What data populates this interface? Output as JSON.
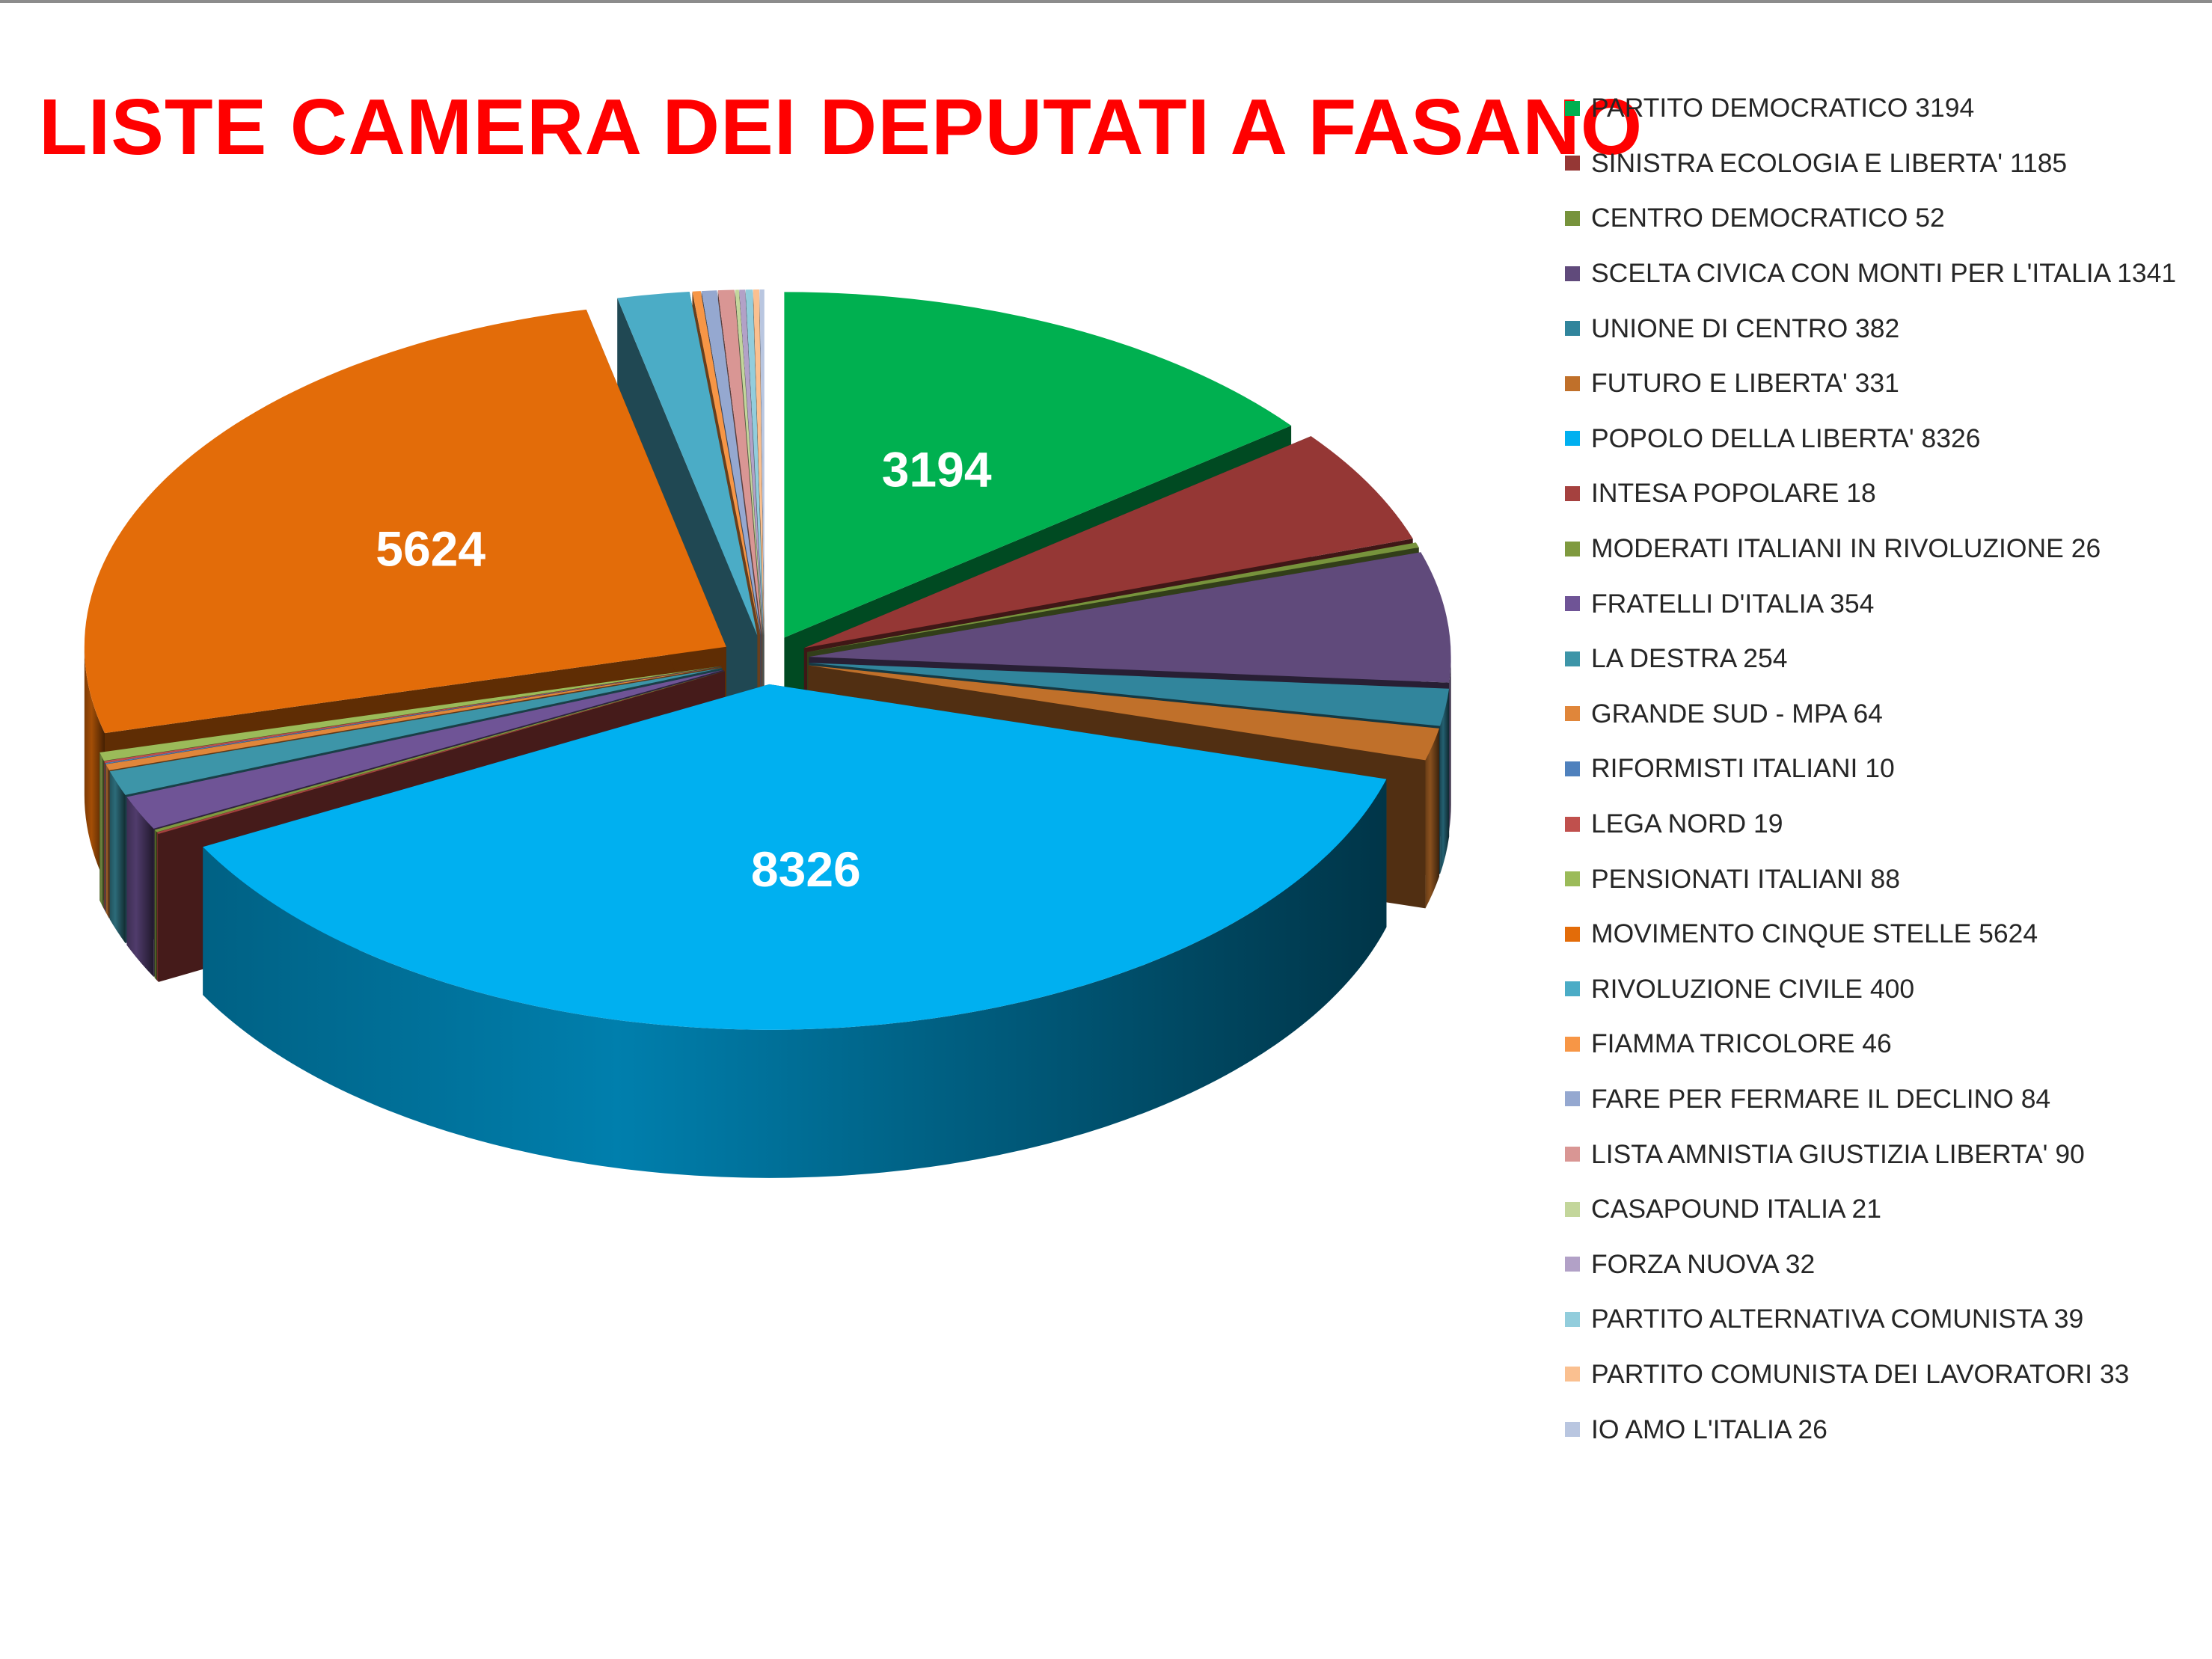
{
  "title": "LISTE CAMERA DEI DEPUTATI A FASANO",
  "chart_data": {
    "type": "pie",
    "title": "LISTE CAMERA DEI DEPUTATI A FASANO",
    "style": "3d-exploded",
    "legend_position": "right",
    "slices": [
      {
        "legend": "PARTITO DEMOCRATICO 3194",
        "value": 3194,
        "color": "#00b050",
        "data_label": "3194"
      },
      {
        "legend": "SINISTRA ECOLOGIA E LIBERTA' 1185",
        "value": 1185,
        "color": "#953735",
        "data_label": ""
      },
      {
        "legend": "CENTRO DEMOCRATICO 52",
        "value": 52,
        "color": "#77933c",
        "data_label": ""
      },
      {
        "legend": "SCELTA CIVICA CON MONTI PER L'ITALIA 1341",
        "value": 1341,
        "color": "#604a7b",
        "data_label": ""
      },
      {
        "legend": "UNIONE DI CENTRO 382",
        "value": 382,
        "color": "#31859c",
        "data_label": ""
      },
      {
        "legend": "FUTURO E LIBERTA' 331",
        "value": 331,
        "color": "#c0702a",
        "data_label": ""
      },
      {
        "legend": "POPOLO DELLA LIBERTA' 8326",
        "value": 8326,
        "color": "#00b0f0",
        "data_label": "8326"
      },
      {
        "legend": "INTESA POPOLARE 18",
        "value": 18,
        "color": "#a5413f",
        "data_label": ""
      },
      {
        "legend": "MODERATI ITALIANI IN RIVOLUZIONE 26",
        "value": 26,
        "color": "#7f9a3f",
        "data_label": ""
      },
      {
        "legend": "FRATELLI D'ITALIA 354",
        "value": 354,
        "color": "#6f5496",
        "data_label": ""
      },
      {
        "legend": "LA DESTRA 254",
        "value": 254,
        "color": "#3d95a8",
        "data_label": ""
      },
      {
        "legend": "GRANDE SUD - MPA 64",
        "value": 64,
        "color": "#e0863a",
        "data_label": ""
      },
      {
        "legend": "RIFORMISTI ITALIANI 10",
        "value": 10,
        "color": "#4f81bd",
        "data_label": ""
      },
      {
        "legend": "LEGA NORD 19",
        "value": 19,
        "color": "#c0504d",
        "data_label": ""
      },
      {
        "legend": "PENSIONATI ITALIANI 88",
        "value": 88,
        "color": "#9bbb59",
        "data_label": ""
      },
      {
        "legend": "MOVIMENTO CINQUE STELLE 5624",
        "value": 5624,
        "color": "#e36c09",
        "data_label": "5624"
      },
      {
        "legend": "RIVOLUZIONE CIVILE 400",
        "value": 400,
        "color": "#4bacc6",
        "data_label": ""
      },
      {
        "legend": "FIAMMA TRICOLORE 46",
        "value": 46,
        "color": "#f79646",
        "data_label": ""
      },
      {
        "legend": "FARE PER FERMARE IL DECLINO 84",
        "value": 84,
        "color": "#95a8d0",
        "data_label": ""
      },
      {
        "legend": "LISTA AMNISTIA GIUSTIZIA LIBERTA' 90",
        "value": 90,
        "color": "#d99694",
        "data_label": ""
      },
      {
        "legend": "CASAPOUND ITALIA 21",
        "value": 21,
        "color": "#c3d69b",
        "data_label": ""
      },
      {
        "legend": "FORZA NUOVA 32",
        "value": 32,
        "color": "#b2a1c7",
        "data_label": ""
      },
      {
        "legend": "PARTITO ALTERNATIVA COMUNISTA 39",
        "value": 39,
        "color": "#92cddc",
        "data_label": ""
      },
      {
        "legend": "PARTITO COMUNISTA DEI LAVORATORI 33",
        "value": 33,
        "color": "#fac090",
        "data_label": ""
      },
      {
        "legend": "IO AMO L'ITALIA 26",
        "value": 26,
        "color": "#b9c6e0",
        "data_label": ""
      }
    ]
  }
}
